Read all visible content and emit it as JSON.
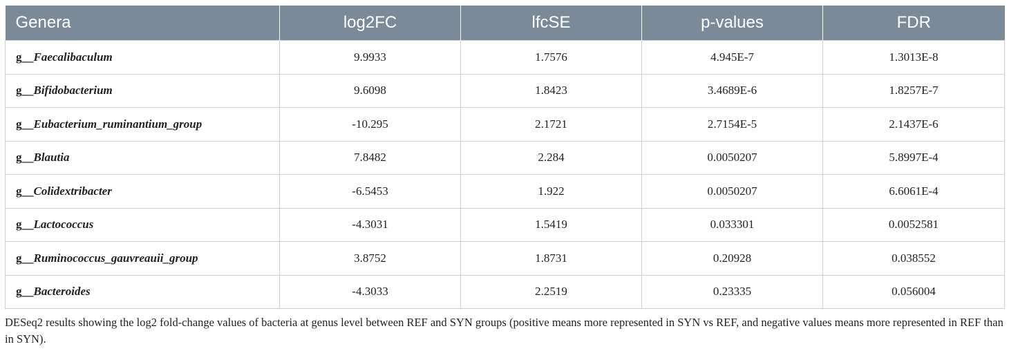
{
  "table": {
    "headers": [
      "Genera",
      "log2FC",
      "lfcSE",
      "p-values",
      "FDR"
    ],
    "rows": [
      {
        "prefix": "g__",
        "name": "Faecalibaculum",
        "log2FC": "9.9933",
        "lfcSE": "1.7576",
        "pvalue": "4.945E-7",
        "fdr": "1.3013E-8"
      },
      {
        "prefix": "g__",
        "name": "Bifidobacterium",
        "log2FC": "9.6098",
        "lfcSE": "1.8423",
        "pvalue": "3.4689E-6",
        "fdr": "1.8257E-7"
      },
      {
        "prefix": "g__",
        "name": "Eubacterium_ruminantium_group",
        "log2FC": "-10.295",
        "lfcSE": "2.1721",
        "pvalue": "2.7154E-5",
        "fdr": "2.1437E-6"
      },
      {
        "prefix": "g__",
        "name": "Blautia",
        "log2FC": "7.8482",
        "lfcSE": "2.284",
        "pvalue": "0.0050207",
        "fdr": "5.8997E-4"
      },
      {
        "prefix": "g__",
        "name": "Colidextribacter",
        "log2FC": "-6.5453",
        "lfcSE": "1.922",
        "pvalue": "0.0050207",
        "fdr": "6.6061E-4"
      },
      {
        "prefix": "g__",
        "name": "Lactococcus",
        "log2FC": "-4.3031",
        "lfcSE": "1.5419",
        "pvalue": "0.033301",
        "fdr": "0.0052581"
      },
      {
        "prefix": "g__",
        "name": "Ruminococcus_gauvreauii_group",
        "log2FC": "3.8752",
        "lfcSE": "1.8731",
        "pvalue": "0.20928",
        "fdr": "0.038552"
      },
      {
        "prefix": "g__",
        "name": "Bacteroides",
        "log2FC": "-4.3033",
        "lfcSE": "2.2519",
        "pvalue": "0.23335",
        "fdr": "0.056004"
      }
    ]
  },
  "caption": "DESeq2 results showing the log2 fold-change values of bacteria at genus level between REF and SYN groups (positive means more represented in SYN vs REF, and negative values means more represented in REF than in SYN).",
  "colors": {
    "header_bg": "#7a8a99",
    "header_text": "#ffffff",
    "grid_line": "#cfcfcf"
  }
}
